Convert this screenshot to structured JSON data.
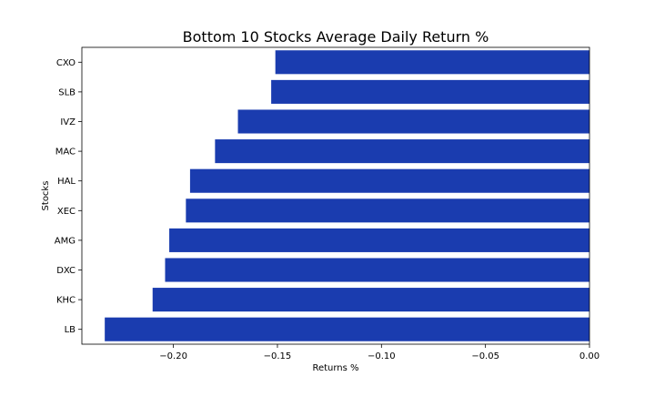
{
  "chart_data": {
    "type": "bar",
    "orientation": "horizontal",
    "title": "Bottom 10 Stocks Average Daily Return %",
    "xlabel": "Returns %",
    "ylabel": "Stocks",
    "categories": [
      "CXO",
      "SLB",
      "IVZ",
      "MAC",
      "HAL",
      "XEC",
      "AMG",
      "DXC",
      "KHC",
      "LB"
    ],
    "values": [
      -0.151,
      -0.153,
      -0.169,
      -0.18,
      -0.192,
      -0.194,
      -0.202,
      -0.204,
      -0.21,
      -0.233
    ],
    "xlim": [
      -0.244,
      0.0
    ],
    "xticks": [
      -0.2,
      -0.15,
      -0.1,
      -0.05,
      0.0
    ],
    "xtick_labels": [
      "−0.20",
      "−0.15",
      "−0.10",
      "−0.05",
      "0.00"
    ],
    "bar_color": "#1a3caf",
    "grid": false,
    "legend": "none"
  }
}
